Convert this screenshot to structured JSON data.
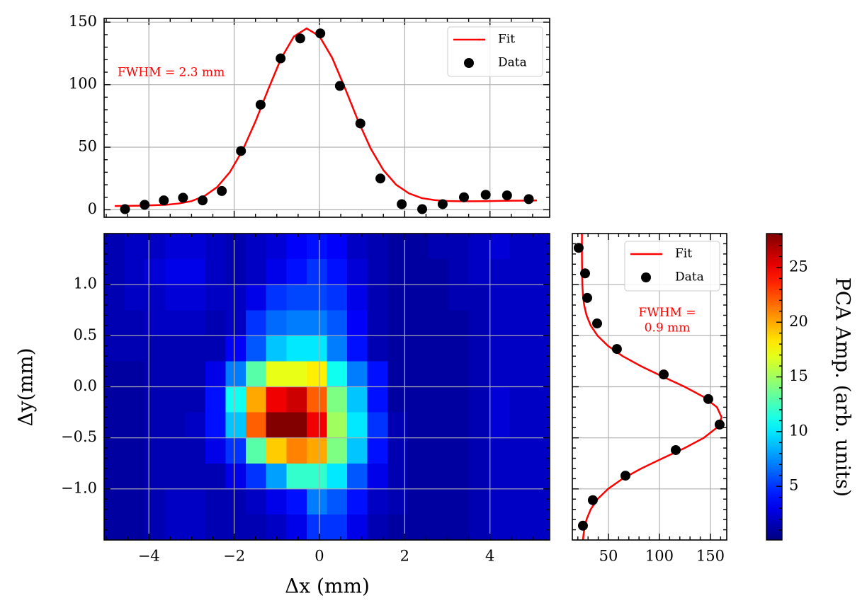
{
  "chart_data": [
    {
      "type": "line",
      "grid": true,
      "legend": "upper right",
      "xlim": [
        -5.05,
        5.4
      ],
      "ylim": [
        -6,
        153
      ],
      "xticks": [
        -4,
        -2,
        0,
        2,
        4
      ],
      "yticks": [
        0,
        50,
        100,
        150
      ],
      "annotation": "FWHM = 2.3 mm",
      "annotation_color": "red",
      "series": [
        {
          "name": "Fit",
          "type": "line",
          "color": "red",
          "x": [
            -4.8,
            -4.5,
            -4.2,
            -3.9,
            -3.6,
            -3.3,
            -3.0,
            -2.7,
            -2.4,
            -2.1,
            -1.8,
            -1.5,
            -1.2,
            -0.9,
            -0.6,
            -0.3,
            0.0,
            0.3,
            0.6,
            0.9,
            1.2,
            1.5,
            1.8,
            2.1,
            2.4,
            2.7,
            3.0,
            3.3,
            3.6,
            3.9,
            4.2,
            4.5,
            4.8,
            5.1
          ],
          "values": [
            3,
            3.1,
            3.3,
            3.6,
            4.0,
            5.0,
            6.9,
            10.9,
            18.1,
            30.1,
            47.7,
            70.6,
            96.4,
            120.9,
            138.5,
            145.0,
            138.8,
            121.4,
            97.2,
            71.7,
            49.1,
            31.7,
            20.0,
            13.1,
            9.3,
            7.7,
            7.0,
            6.8,
            6.8,
            6.9,
            7.05,
            7.2,
            7.3,
            7.46
          ]
        },
        {
          "name": "Data",
          "type": "scatter",
          "color": "black",
          "x": [
            -4.56,
            -4.1,
            -3.65,
            -3.2,
            -2.74,
            -2.29,
            -1.84,
            -1.38,
            -0.91,
            -0.45,
            0.02,
            0.48,
            0.96,
            1.43,
            1.93,
            2.41,
            2.89,
            3.39,
            3.9,
            4.4,
            4.91
          ],
          "values": [
            0.5,
            4,
            7.5,
            9.6,
            7.5,
            15,
            47,
            84,
            121,
            137,
            141,
            99,
            69,
            25,
            4.5,
            0.5,
            4.5,
            10,
            12,
            11.5,
            8.5
          ]
        }
      ]
    },
    {
      "type": "heatmap",
      "grid": true,
      "colormap": "jet",
      "xlim": [
        -5.05,
        5.4
      ],
      "ylim": [
        -1.5,
        1.5
      ],
      "xticks": [
        {
          "value": -4,
          "label": "−4"
        },
        {
          "value": -2,
          "label": "−2"
        },
        0,
        2,
        4
      ],
      "yticks": [
        {
          "value": -1,
          "label": "−1.0"
        },
        {
          "value": -0.5,
          "label": "−0.5"
        },
        {
          "value": 0,
          "label": "0.0"
        },
        0.5,
        {
          "value": 1,
          "label": "1.0"
        }
      ],
      "xlabel": "Δx (mm)",
      "ylabel": "Δy(mm)",
      "zlim": [
        0.1,
        28.1
      ],
      "zticks": [
        5,
        10,
        15,
        20,
        25
      ],
      "colorbar_label": "PCA Amp. (arb. units)",
      "z": [
        [
          1.5,
          2,
          2,
          2.5,
          2.5,
          2,
          1.5,
          2,
          2.5,
          3.5,
          4,
          3.5,
          2,
          1.5,
          1,
          1,
          1.5,
          1.5,
          2,
          2.5,
          2,
          2
        ],
        [
          1.5,
          2,
          2.5,
          3,
          3,
          2,
          1.5,
          2,
          3,
          4,
          5,
          4,
          2.5,
          1.5,
          1,
          1,
          1,
          1.5,
          2,
          2,
          2,
          2
        ],
        [
          1.5,
          2,
          2,
          2.5,
          2.5,
          2,
          2,
          3,
          5,
          5.5,
          5.5,
          5,
          3,
          1.5,
          1,
          1,
          1,
          1.5,
          1.5,
          2,
          2,
          2
        ],
        [
          1.5,
          1.5,
          2,
          2,
          2,
          1.5,
          2,
          5,
          6.5,
          7,
          7,
          6,
          3.5,
          1.5,
          1,
          1,
          1,
          1,
          1.5,
          2,
          2,
          2
        ],
        [
          1.5,
          1.5,
          1.5,
          1.5,
          1.5,
          1.5,
          3.5,
          6,
          9,
          10,
          10,
          7,
          4,
          1.5,
          1,
          1,
          1,
          1,
          1.5,
          2,
          2,
          2
        ],
        [
          1,
          1,
          1.5,
          1.5,
          1.5,
          3,
          7,
          13,
          17,
          17,
          18,
          11,
          7,
          4,
          1,
          1,
          1,
          1,
          1.5,
          2,
          2,
          2
        ],
        [
          1,
          1,
          1.5,
          1.5,
          1.5,
          4,
          11,
          20,
          25,
          26,
          22,
          14,
          9,
          4,
          1,
          1,
          1,
          1,
          1.5,
          2.5,
          2,
          2
        ],
        [
          1,
          1,
          1.5,
          1.5,
          2,
          4,
          9,
          22,
          28,
          28,
          25,
          15,
          10,
          5,
          1.5,
          1,
          1,
          1,
          1.5,
          2.5,
          2,
          2
        ],
        [
          1,
          1,
          1.5,
          1.5,
          1.5,
          3,
          5,
          13,
          19,
          21,
          20,
          14,
          9,
          4,
          1.5,
          1,
          1,
          1,
          1.5,
          2,
          2,
          2
        ],
        [
          1,
          1,
          1.5,
          1.5,
          1.5,
          1.5,
          3,
          5,
          8,
          12,
          12,
          10,
          6,
          3,
          1.5,
          1,
          1,
          1,
          1.5,
          2,
          2,
          2
        ],
        [
          1,
          1,
          1.5,
          2,
          2,
          1.5,
          1.5,
          2,
          3,
          4,
          7,
          6,
          4,
          2,
          1.5,
          1,
          1,
          1,
          1.5,
          2,
          2,
          2
        ],
        [
          1,
          1,
          1.5,
          2,
          2,
          1.5,
          1.5,
          1.5,
          2,
          3,
          5,
          5,
          3,
          1.5,
          1,
          1,
          1,
          1,
          1.5,
          2,
          2,
          2
        ]
      ]
    },
    {
      "type": "line",
      "orientation": "horizontal",
      "grid": true,
      "legend": "upper right",
      "xlim": [
        14.6,
        166
      ],
      "ylim": [
        -1.5,
        1.5
      ],
      "xticks": [
        50,
        100,
        150
      ],
      "yticks": [
        -1,
        -0.5,
        0,
        0.5,
        1
      ],
      "annotation": "FWHM =\n0.9 mm",
      "annotation_color": "red",
      "series": [
        {
          "name": "Fit",
          "type": "line",
          "color": "red",
          "y": [
            1.5,
            1.4,
            1.3,
            1.2,
            1.1,
            1.0,
            0.9,
            0.8,
            0.7,
            0.6,
            0.5,
            0.4,
            0.3,
            0.2,
            0.1,
            0.0,
            -0.1,
            -0.2,
            -0.3,
            -0.4,
            -0.5,
            -0.6,
            -0.7,
            -0.8,
            -0.9,
            -1.0,
            -1.1,
            -1.2,
            -1.3,
            -1.4,
            -1.5
          ],
          "values": [
            24,
            24,
            24.0,
            24.1,
            24.2,
            24.4,
            25.0,
            26.2,
            28.5,
            32.6,
            39.3,
            49.6,
            63.9,
            82.2,
            103.2,
            124.7,
            143.5,
            156.4,
            161,
            156.4,
            143.5,
            124.7,
            103.2,
            82.2,
            63.9,
            49.6,
            39.3,
            32.6,
            28.5,
            26.2,
            25.0
          ]
        },
        {
          "name": "Data",
          "type": "scatter",
          "color": "black",
          "y": [
            1.36,
            1.11,
            0.87,
            0.62,
            0.37,
            0.12,
            -0.12,
            -0.37,
            -0.62,
            -0.87,
            -1.11,
            -1.36
          ],
          "values": [
            20.8,
            27.1,
            29.2,
            38.9,
            58.3,
            104.2,
            147.9,
            159.0,
            116.0,
            66.7,
            34.7,
            25.0
          ]
        }
      ]
    }
  ]
}
